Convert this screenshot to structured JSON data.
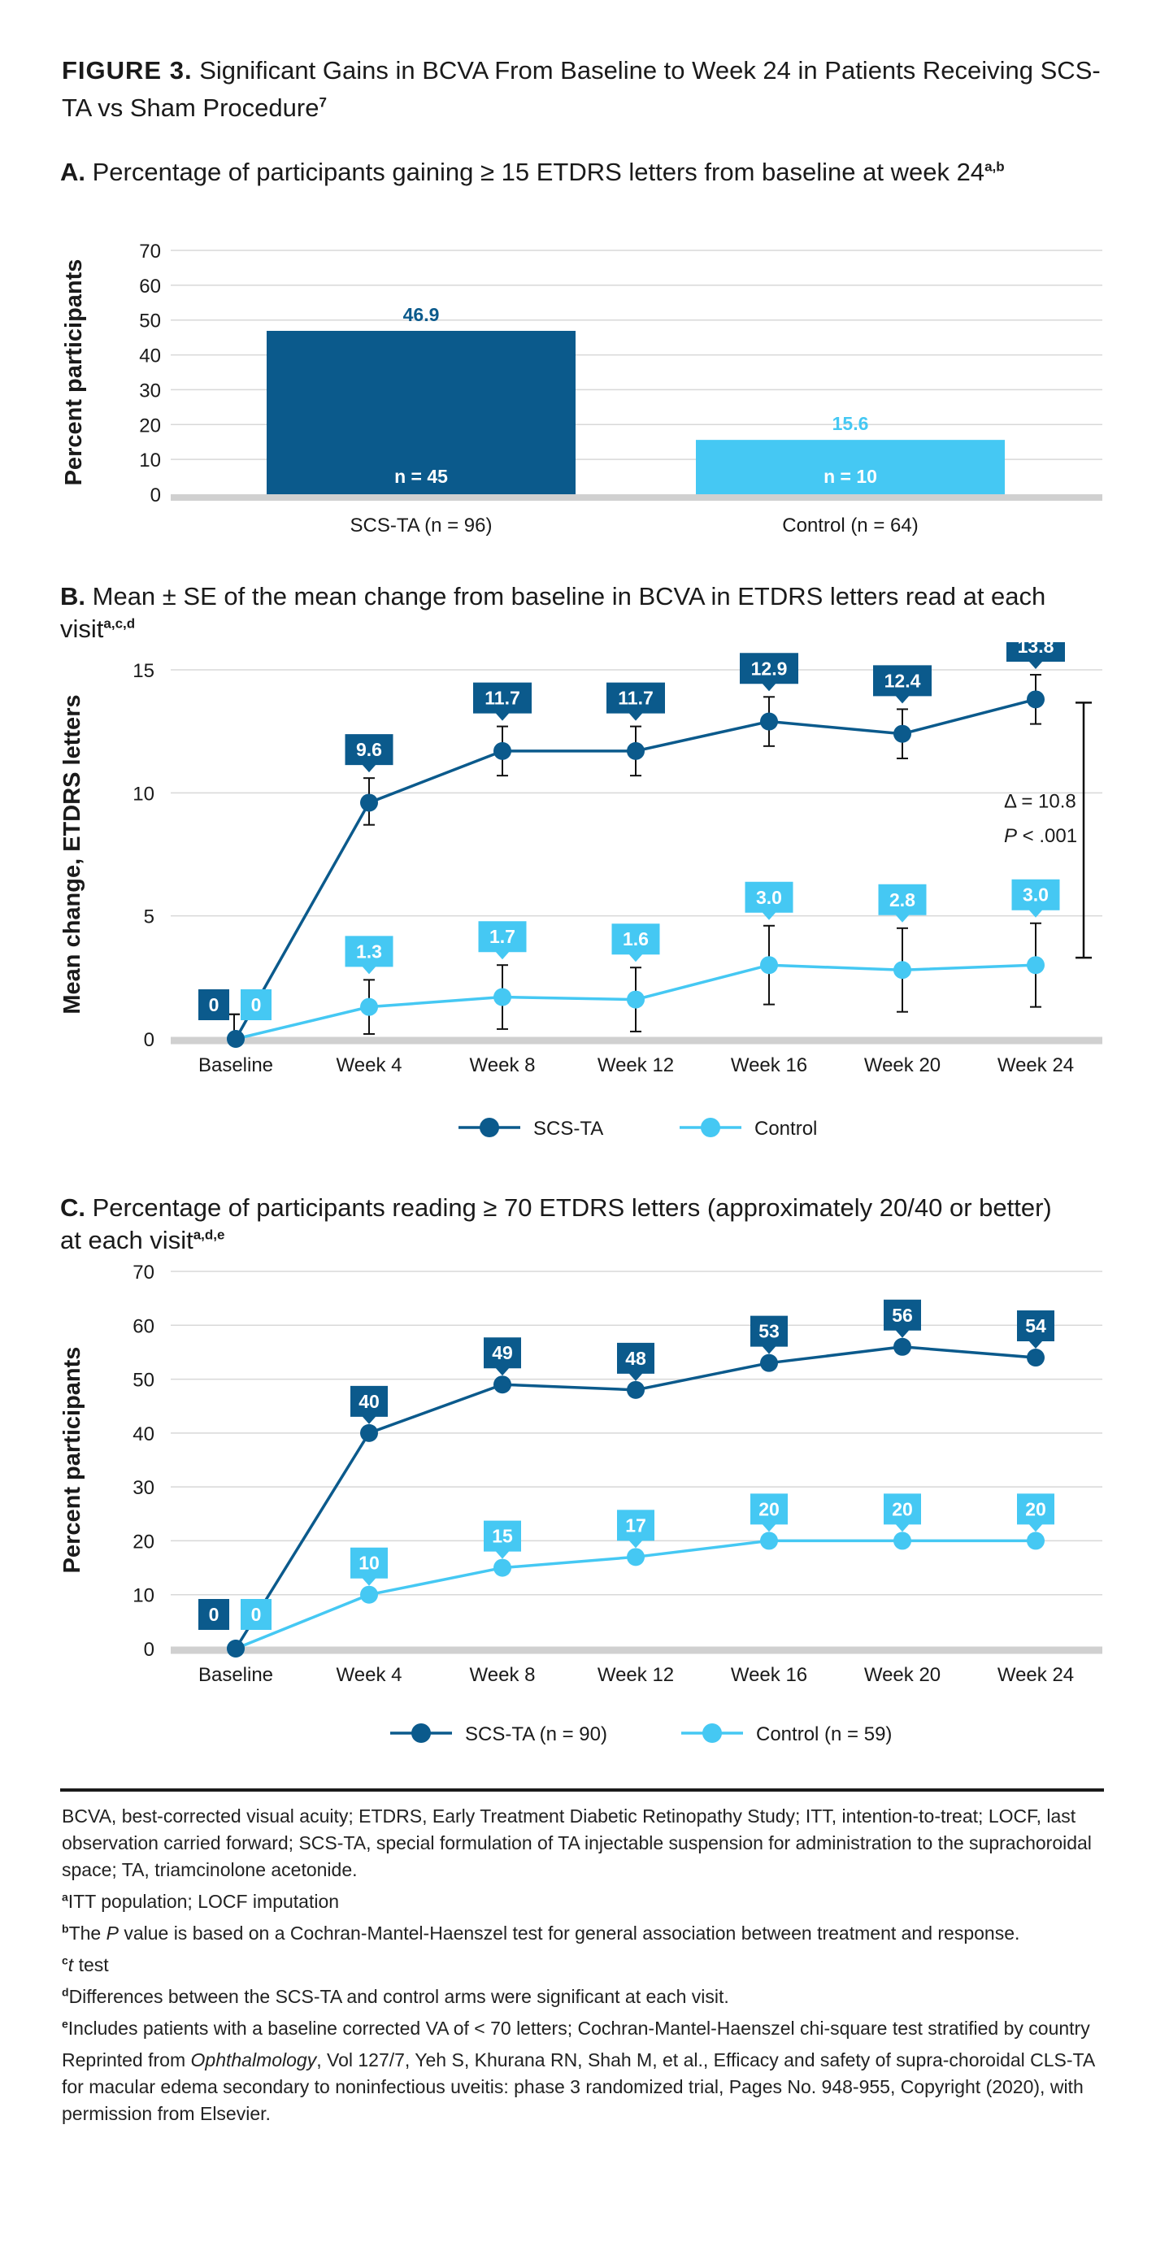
{
  "figure": {
    "label": "FIGURE 3.",
    "title": "Significant Gains in BCVA From Baseline to Week 24 in Patients Receiving SCS-TA vs Sham Procedure",
    "title_sup": "7"
  },
  "colors": {
    "scs": "#0b5a8c",
    "control": "#45c8f3",
    "axis": "#d0d0d0",
    "grid": "#d8d8d8",
    "text": "#1a1a1a"
  },
  "chart_data": [
    {
      "type": "bar",
      "panel": "A.",
      "title": "Percentage of participants gaining ≥ 15 ETDRS letters from baseline at week 24",
      "title_sup": "a,b",
      "ylabel": "Percent participants",
      "ylim": [
        0,
        70
      ],
      "yticks": [
        0,
        10,
        20,
        30,
        40,
        50,
        60,
        70
      ],
      "grid": true,
      "categories": [
        "SCS-TA (n = 96)",
        "Control (n = 64)"
      ],
      "values": [
        46.9,
        15.6
      ],
      "value_labels": [
        "46.9",
        "15.6"
      ],
      "n_labels": [
        "n = 45",
        "n = 10"
      ]
    },
    {
      "type": "line",
      "panel": "B.",
      "title": "Mean ± SE of the mean change from baseline in BCVA in ETDRS letters read at each visit",
      "title_sup": "a,c,d",
      "ylabel": "Mean change, ETDRS letters",
      "ylim": [
        0,
        15
      ],
      "yticks": [
        0,
        5,
        10,
        15
      ],
      "grid": true,
      "legend_position": "bottom-center",
      "categories": [
        "Baseline",
        "Week 4",
        "Week 8",
        "Week 12",
        "Week 16",
        "Week 20",
        "Week 24"
      ],
      "series": [
        {
          "name": "SCS-TA",
          "values": [
            0,
            9.6,
            11.7,
            11.7,
            12.9,
            12.4,
            13.8
          ],
          "labels": [
            "0",
            "9.6",
            "11.7",
            "11.7",
            "12.9",
            "12.4",
            "13.8"
          ],
          "se_low": [
            -0.6,
            8.7,
            10.7,
            10.7,
            11.9,
            11.4,
            12.8
          ],
          "se_high": [
            1.0,
            10.6,
            12.7,
            12.7,
            13.9,
            13.4,
            14.8
          ]
        },
        {
          "name": "Control",
          "values": [
            0,
            1.3,
            1.7,
            1.6,
            3.0,
            2.8,
            3.0
          ],
          "labels": [
            "0",
            "1.3",
            "1.7",
            "1.6",
            "3.0",
            "2.8",
            "3.0"
          ],
          "se_low": [
            -0.6,
            0.2,
            0.4,
            0.3,
            1.4,
            1.1,
            1.3
          ],
          "se_high": [
            1.0,
            2.4,
            3.0,
            2.9,
            4.6,
            4.5,
            4.7
          ]
        }
      ],
      "annotation": {
        "delta": "Δ = 10.8",
        "p_label": "P",
        "p_value": " < .001"
      }
    },
    {
      "type": "line",
      "panel": "C.",
      "title": "Percentage of participants reading ≥ 70 ETDRS letters (approximately 20/40 or better) at each visit",
      "title_sup": "a,d,e",
      "ylabel": "Percent participants",
      "ylim": [
        0,
        70
      ],
      "yticks": [
        0,
        10,
        20,
        30,
        40,
        50,
        60,
        70
      ],
      "grid": true,
      "legend_position": "bottom-center",
      "categories": [
        "Baseline",
        "Week 4",
        "Week 8",
        "Week 12",
        "Week 16",
        "Week 20",
        "Week 24"
      ],
      "series": [
        {
          "name": "SCS-TA (n = 90)",
          "values": [
            0,
            40,
            49,
            48,
            53,
            56,
            54
          ],
          "labels": [
            "0",
            "40",
            "49",
            "48",
            "53",
            "56",
            "54"
          ]
        },
        {
          "name": "Control (n = 59)",
          "values": [
            0,
            10,
            15,
            17,
            20,
            20,
            20
          ],
          "labels": [
            "0",
            "10",
            "15",
            "17",
            "20",
            "20",
            "20"
          ]
        }
      ]
    }
  ],
  "footnotes": {
    "abbrev": "BCVA, best-corrected visual acuity; ETDRS, Early Treatment Diabetic Retinopathy Study; ITT, intention-to-treat; LOCF, last observation carried forward; SCS-TA, special formulation of TA injectable suspension for administration to the suprachoroidal space; TA, triamcinolone acetonide.",
    "a_mark": "a",
    "a": "ITT population; LOCF imputation",
    "b_mark": "b",
    "b_pre": "The ",
    "b_italic": "P",
    "b_post": " value is based on a Cochran-Mantel-Haenszel test for general association between treatment and response.",
    "c_mark": "c",
    "c_italic": "t",
    "c_post": " test",
    "d_mark": "d",
    "d": "Differences between the SCS-TA and control arms were significant at each visit.",
    "e_mark": "e",
    "e": "Includes patients with a baseline corrected VA of < 70 letters; Cochran-Mantel-Haenszel chi-square test stratified by country",
    "reprint_pre": "Reprinted from ",
    "reprint_italic": "Ophthalmology",
    "reprint_post": ", Vol 127/7, Yeh S, Khurana RN, Shah M, et al., Efficacy and safety of supra-choroidal CLS-TA for macular edema secondary to noninfectious uveitis: phase 3 randomized trial, Pages No. 948-955, Copyright (2020), with permission from Elsevier."
  }
}
